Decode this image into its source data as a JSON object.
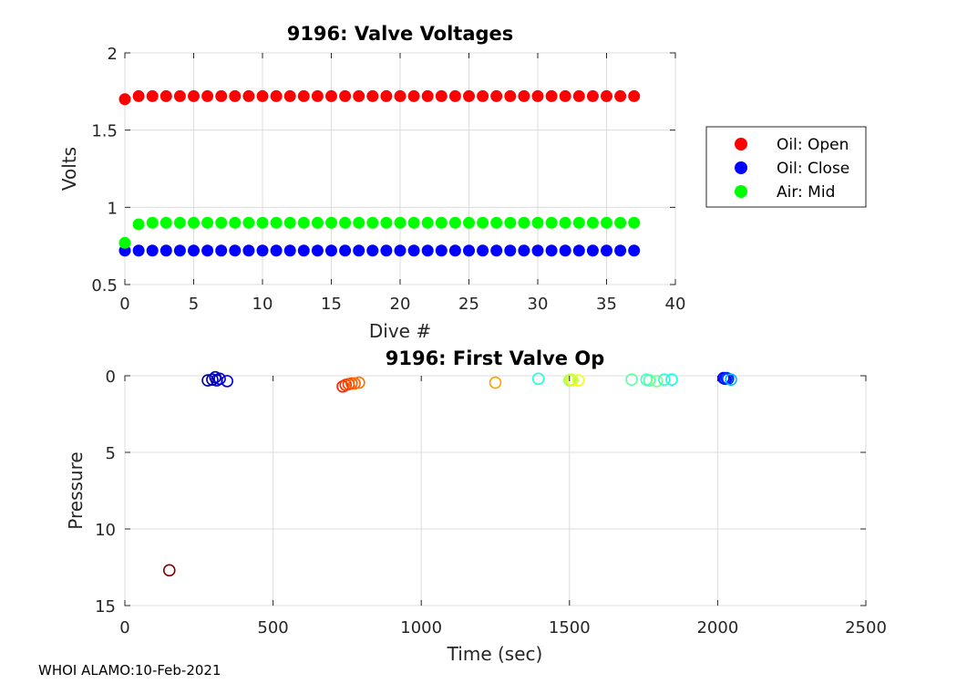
{
  "footer": "WHOI ALAMO:10-Feb-2021",
  "chart_data": [
    {
      "type": "scatter",
      "title": "9196: Valve Voltages",
      "xlabel": "Dive #",
      "ylabel": "Volts",
      "xlim": [
        0,
        40
      ],
      "ylim": [
        0.5,
        2
      ],
      "xticks": [
        0,
        5,
        10,
        15,
        20,
        25,
        30,
        35,
        40
      ],
      "yticks": [
        0.5,
        1,
        1.5,
        2
      ],
      "ytick_labels": [
        "0.5",
        "1",
        "1.5",
        "2"
      ],
      "grid": true,
      "legend_position": "right",
      "series": [
        {
          "name": "Oil: Open",
          "color": "#ff0000",
          "x": [
            0,
            1,
            2,
            3,
            4,
            5,
            6,
            7,
            8,
            9,
            10,
            11,
            12,
            13,
            14,
            15,
            16,
            17,
            18,
            19,
            20,
            21,
            22,
            23,
            24,
            25,
            26,
            27,
            28,
            29,
            30,
            31,
            32,
            33,
            34,
            35,
            36,
            37
          ],
          "y": [
            1.7,
            1.72,
            1.72,
            1.72,
            1.72,
            1.72,
            1.72,
            1.72,
            1.72,
            1.72,
            1.72,
            1.72,
            1.72,
            1.72,
            1.72,
            1.72,
            1.72,
            1.72,
            1.72,
            1.72,
            1.72,
            1.72,
            1.72,
            1.72,
            1.72,
            1.72,
            1.72,
            1.72,
            1.72,
            1.72,
            1.72,
            1.72,
            1.72,
            1.72,
            1.72,
            1.72,
            1.72,
            1.72
          ]
        },
        {
          "name": "Oil: Close",
          "color": "#0000ff",
          "x": [
            0,
            1,
            2,
            3,
            4,
            5,
            6,
            7,
            8,
            9,
            10,
            11,
            12,
            13,
            14,
            15,
            16,
            17,
            18,
            19,
            20,
            21,
            22,
            23,
            24,
            25,
            26,
            27,
            28,
            29,
            30,
            31,
            32,
            33,
            34,
            35,
            36,
            37
          ],
          "y": [
            0.72,
            0.72,
            0.72,
            0.72,
            0.72,
            0.72,
            0.72,
            0.72,
            0.72,
            0.72,
            0.72,
            0.72,
            0.72,
            0.72,
            0.72,
            0.72,
            0.72,
            0.72,
            0.72,
            0.72,
            0.72,
            0.72,
            0.72,
            0.72,
            0.72,
            0.72,
            0.72,
            0.72,
            0.72,
            0.72,
            0.72,
            0.72,
            0.72,
            0.72,
            0.72,
            0.72,
            0.72,
            0.72
          ]
        },
        {
          "name": "Air: Mid",
          "color": "#00ff00",
          "x": [
            0,
            1,
            2,
            3,
            4,
            5,
            6,
            7,
            8,
            9,
            10,
            11,
            12,
            13,
            14,
            15,
            16,
            17,
            18,
            19,
            20,
            21,
            22,
            23,
            24,
            25,
            26,
            27,
            28,
            29,
            30,
            31,
            32,
            33,
            34,
            35,
            36,
            37
          ],
          "y": [
            0.77,
            0.89,
            0.9,
            0.9,
            0.9,
            0.9,
            0.9,
            0.9,
            0.9,
            0.9,
            0.9,
            0.9,
            0.9,
            0.9,
            0.9,
            0.9,
            0.9,
            0.9,
            0.9,
            0.9,
            0.9,
            0.9,
            0.9,
            0.9,
            0.9,
            0.9,
            0.9,
            0.9,
            0.9,
            0.9,
            0.9,
            0.9,
            0.9,
            0.9,
            0.9,
            0.9,
            0.9,
            0.9
          ]
        }
      ]
    },
    {
      "type": "scatter",
      "title": "9196: First Valve Op",
      "xlabel": "Time (sec)",
      "ylabel": "Pressure",
      "xlim": [
        0,
        2500
      ],
      "ylim": [
        0,
        15
      ],
      "y_reversed": true,
      "xticks": [
        0,
        500,
        1000,
        1500,
        2000,
        2500
      ],
      "yticks": [
        0,
        5,
        10,
        15
      ],
      "grid": true,
      "marker": "open-circle",
      "points": [
        {
          "x": 150,
          "y": 12.7,
          "color": "#800000"
        },
        {
          "x": 280,
          "y": 0.3,
          "color": "#00008f"
        },
        {
          "x": 295,
          "y": 0.25,
          "color": "#00009f"
        },
        {
          "x": 305,
          "y": 0.1,
          "color": "#0000af"
        },
        {
          "x": 310,
          "y": 0.3,
          "color": "#0000bf"
        },
        {
          "x": 320,
          "y": 0.2,
          "color": "#0000cf"
        },
        {
          "x": 345,
          "y": 0.35,
          "color": "#0000df"
        },
        {
          "x": 735,
          "y": 0.7,
          "color": "#ff2000"
        },
        {
          "x": 745,
          "y": 0.6,
          "color": "#ff3000"
        },
        {
          "x": 755,
          "y": 0.55,
          "color": "#ff4000"
        },
        {
          "x": 765,
          "y": 0.5,
          "color": "#ff5000"
        },
        {
          "x": 775,
          "y": 0.5,
          "color": "#ff6000"
        },
        {
          "x": 790,
          "y": 0.45,
          "color": "#ff7000"
        },
        {
          "x": 1250,
          "y": 0.45,
          "color": "#ffa000"
        },
        {
          "x": 1395,
          "y": 0.2,
          "color": "#20ffdf"
        },
        {
          "x": 1500,
          "y": 0.3,
          "color": "#9fff60"
        },
        {
          "x": 1505,
          "y": 0.25,
          "color": "#bfff40"
        },
        {
          "x": 1510,
          "y": 0.3,
          "color": "#dfff20"
        },
        {
          "x": 1530,
          "y": 0.3,
          "color": "#efff10"
        },
        {
          "x": 1710,
          "y": 0.25,
          "color": "#60ff9f"
        },
        {
          "x": 1760,
          "y": 0.25,
          "color": "#40ffbf"
        },
        {
          "x": 1770,
          "y": 0.3,
          "color": "#50ffaf"
        },
        {
          "x": 1795,
          "y": 0.35,
          "color": "#80ff80"
        },
        {
          "x": 1820,
          "y": 0.25,
          "color": "#30ffcf"
        },
        {
          "x": 1845,
          "y": 0.25,
          "color": "#10ffef"
        },
        {
          "x": 2020,
          "y": 0.15,
          "color": "#0000ff"
        },
        {
          "x": 2025,
          "y": 0.2,
          "color": "#0010ff"
        },
        {
          "x": 2030,
          "y": 0.15,
          "color": "#0020ff"
        },
        {
          "x": 2035,
          "y": 0.2,
          "color": "#0030ff"
        },
        {
          "x": 2045,
          "y": 0.25,
          "color": "#00bfff"
        }
      ]
    }
  ]
}
